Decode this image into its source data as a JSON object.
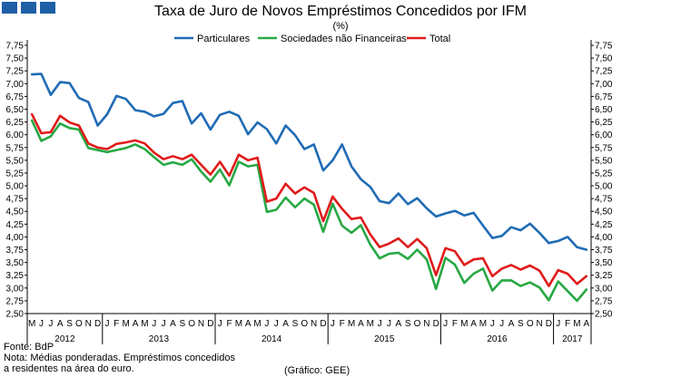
{
  "header": {
    "title": "Taxa de Juro de Novos Empréstimos Concedidos por IFM",
    "subtitle": "(%)",
    "logo_color": "#1f5fa6"
  },
  "footer": {
    "source": "Fonte: BdP",
    "note_line1": "Nota: Médias ponderadas. Empréstimos concedidos",
    "note_line2": "a residentes na área do euro.",
    "credit": "(Gráfico: GEE)"
  },
  "chart_data": {
    "type": "line",
    "title": "Taxa de Juro de Novos Empréstimos Concedidos por IFM",
    "subtitle": "(%)",
    "ylim": [
      2.5,
      7.75
    ],
    "y_ticks": [
      "7,75",
      "7,50",
      "7,25",
      "7,00",
      "6,75",
      "6,50",
      "6,25",
      "6,00",
      "5,75",
      "5,50",
      "5,25",
      "5,00",
      "4,75",
      "4,50",
      "4,25",
      "4,00",
      "3,75",
      "3,50",
      "3,25",
      "3,00",
      "2,75",
      "2,50"
    ],
    "legend_position": "top",
    "grid": false,
    "x": [
      "M",
      "J",
      "J",
      "A",
      "S",
      "O",
      "N",
      "D",
      "J",
      "F",
      "M",
      "A",
      "M",
      "J",
      "J",
      "A",
      "S",
      "O",
      "N",
      "D",
      "J",
      "F",
      "M",
      "A",
      "M",
      "J",
      "J",
      "A",
      "S",
      "O",
      "N",
      "D",
      "J",
      "F",
      "M",
      "A",
      "M",
      "J",
      "J",
      "A",
      "S",
      "O",
      "N",
      "D",
      "J",
      "F",
      "M",
      "A",
      "M",
      "J",
      "J",
      "A",
      "S",
      "O",
      "N",
      "D",
      "J",
      "F",
      "M",
      "A"
    ],
    "years": [
      {
        "label": "2012",
        "start": 0,
        "end": 7
      },
      {
        "label": "2013",
        "start": 8,
        "end": 19
      },
      {
        "label": "2014",
        "start": 20,
        "end": 31
      },
      {
        "label": "2015",
        "start": 32,
        "end": 43
      },
      {
        "label": "2016",
        "start": 44,
        "end": 55
      },
      {
        "label": "2017",
        "start": 56,
        "end": 59
      }
    ],
    "series": [
      {
        "name": "Particulares",
        "color": "#1f6bb5",
        "values": [
          7.18,
          7.19,
          6.78,
          7.03,
          7.01,
          6.72,
          6.64,
          6.18,
          6.4,
          6.76,
          6.7,
          6.48,
          6.45,
          6.36,
          6.41,
          6.62,
          6.66,
          6.22,
          6.42,
          6.1,
          6.39,
          6.45,
          6.37,
          6.01,
          6.24,
          6.11,
          5.83,
          6.18,
          5.99,
          5.72,
          5.81,
          5.3,
          5.5,
          5.81,
          5.38,
          5.13,
          4.98,
          4.7,
          4.66,
          4.85,
          4.64,
          4.76,
          4.56,
          4.4,
          4.46,
          4.51,
          4.42,
          4.47,
          4.22,
          3.98,
          4.02,
          4.19,
          4.13,
          4.26,
          4.08,
          3.88,
          3.92,
          4.0,
          3.8,
          3.75
        ]
      },
      {
        "name": "Sociedades não Financeiras",
        "color": "#27a844",
        "values": [
          6.28,
          5.88,
          5.97,
          6.22,
          6.13,
          6.1,
          5.74,
          5.7,
          5.66,
          5.7,
          5.74,
          5.81,
          5.72,
          5.56,
          5.41,
          5.46,
          5.41,
          5.52,
          5.28,
          5.08,
          5.32,
          5.01,
          5.47,
          5.38,
          5.41,
          4.49,
          4.53,
          4.77,
          4.58,
          4.75,
          4.63,
          4.1,
          4.65,
          4.22,
          4.08,
          4.23,
          3.85,
          3.58,
          3.67,
          3.69,
          3.57,
          3.75,
          3.56,
          2.98,
          3.59,
          3.46,
          3.1,
          3.28,
          3.38,
          2.95,
          3.15,
          3.15,
          3.04,
          3.11,
          3.01,
          2.76,
          3.13,
          2.94,
          2.75,
          2.97
        ]
      },
      {
        "name": "Total",
        "color": "#e01b1b",
        "values": [
          6.4,
          6.03,
          6.05,
          6.37,
          6.24,
          6.18,
          5.83,
          5.75,
          5.72,
          5.82,
          5.85,
          5.89,
          5.83,
          5.65,
          5.52,
          5.58,
          5.52,
          5.61,
          5.41,
          5.22,
          5.47,
          5.2,
          5.61,
          5.5,
          5.55,
          4.69,
          4.75,
          5.04,
          4.85,
          4.97,
          4.86,
          4.31,
          4.79,
          4.55,
          4.35,
          4.38,
          4.05,
          3.8,
          3.87,
          3.97,
          3.8,
          3.96,
          3.78,
          3.25,
          3.78,
          3.72,
          3.45,
          3.56,
          3.58,
          3.23,
          3.38,
          3.45,
          3.36,
          3.44,
          3.34,
          3.04,
          3.35,
          3.28,
          3.08,
          3.23
        ]
      }
    ]
  }
}
